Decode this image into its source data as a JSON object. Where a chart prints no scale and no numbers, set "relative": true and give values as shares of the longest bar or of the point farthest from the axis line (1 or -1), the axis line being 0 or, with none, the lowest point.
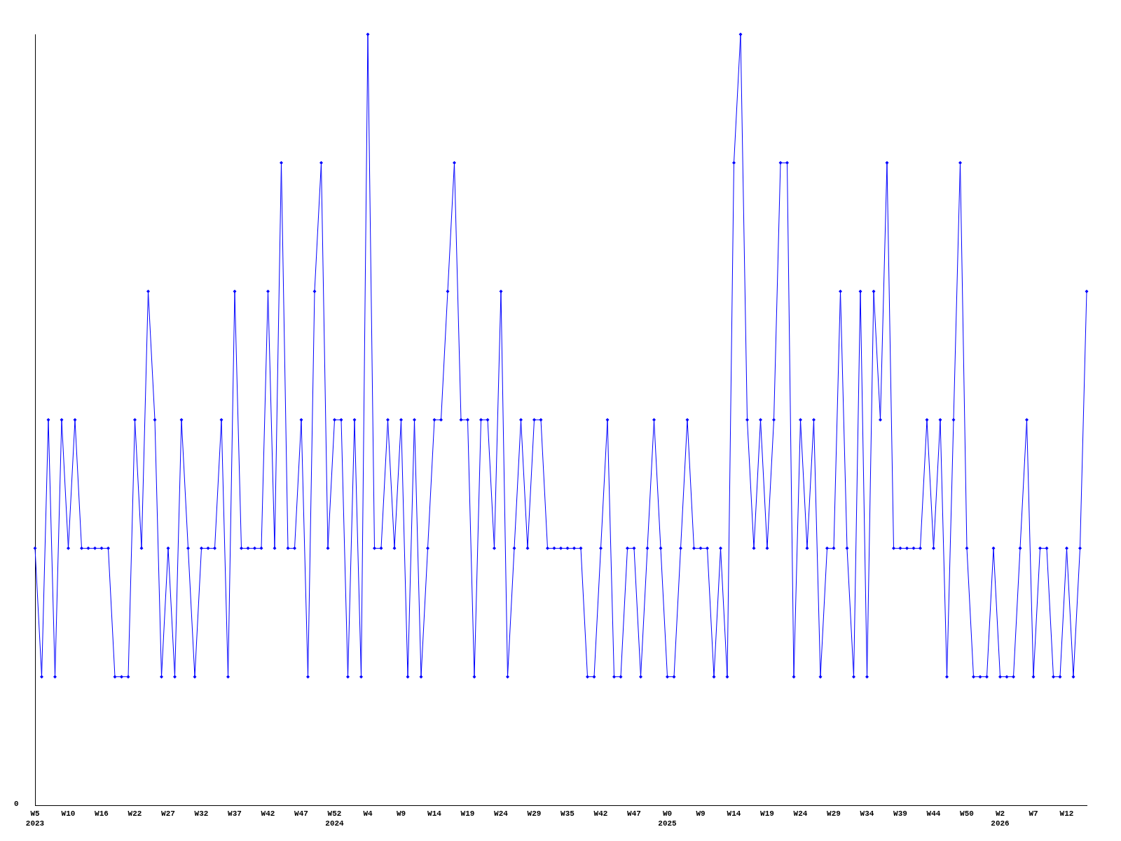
{
  "chart_data": {
    "type": "line",
    "relative": true,
    "marker": "diamond",
    "line_style": "solid",
    "grid": false,
    "legend": false,
    "annotations": [
      "0"
    ],
    "categories": [
      "W5\n2023",
      null,
      null,
      null,
      null,
      "W10",
      null,
      null,
      null,
      null,
      "W16",
      null,
      null,
      null,
      null,
      "W22",
      null,
      null,
      null,
      null,
      "W27",
      null,
      null,
      null,
      null,
      "W32",
      null,
      null,
      null,
      null,
      "W37",
      null,
      null,
      null,
      null,
      "W42",
      null,
      null,
      null,
      null,
      "W47",
      null,
      null,
      null,
      null,
      "W52\n2024",
      null,
      null,
      null,
      null,
      "W4",
      null,
      null,
      null,
      null,
      "W9",
      null,
      null,
      null,
      null,
      "W14",
      null,
      null,
      null,
      null,
      "W19",
      null,
      null,
      null,
      null,
      "W24",
      null,
      null,
      null,
      null,
      "W29",
      null,
      null,
      null,
      null,
      "W35",
      null,
      null,
      null,
      null,
      "W42",
      null,
      null,
      null,
      null,
      "W47",
      null,
      null,
      null,
      null,
      "W0\n2025",
      null,
      null,
      null,
      null,
      "W9",
      null,
      null,
      null,
      null,
      "W14",
      null,
      null,
      null,
      null,
      "W19",
      null,
      null,
      null,
      null,
      "W24",
      null,
      null,
      null,
      null,
      "W29",
      null,
      null,
      null,
      null,
      "W34",
      null,
      null,
      null,
      null,
      "W39",
      null,
      null,
      null,
      null,
      "W44",
      null,
      null,
      null,
      null,
      "W50",
      null,
      null,
      null,
      null,
      "W2\n2026",
      null,
      null,
      null,
      null,
      "W7",
      null,
      null,
      null,
      null,
      "W12",
      null,
      null,
      null
    ],
    "series": [
      {
        "color": "#0000ff",
        "values": [
          0.3333,
          0.1667,
          0.5,
          0.1667,
          0.5,
          0.3333,
          0.5,
          0.3333,
          0.3333,
          0.3333,
          0.3333,
          0.3333,
          0.1667,
          0.1667,
          0.1667,
          0.5,
          0.3333,
          0.6667,
          0.5,
          0.1667,
          0.3333,
          0.1667,
          0.5,
          0.3333,
          0.1667,
          0.3333,
          0.3333,
          0.3333,
          0.5,
          0.1667,
          0.6667,
          0.3333,
          0.3333,
          0.3333,
          0.3333,
          0.6667,
          0.3333,
          0.8333,
          0.3333,
          0.3333,
          0.5,
          0.1667,
          0.6667,
          0.8333,
          0.3333,
          0.5,
          0.5,
          0.1667,
          0.5,
          0.1667,
          1,
          0.3333,
          0.3333,
          0.5,
          0.3333,
          0.5,
          0.1667,
          0.5,
          0.1667,
          0.3333,
          0.5,
          0.5,
          0.6667,
          0.8333,
          0.5,
          0.5,
          0.1667,
          0.5,
          0.5,
          0.3333,
          0.6667,
          0.1667,
          0.3333,
          0.5,
          0.3333,
          0.5,
          0.5,
          0.3333,
          0.3333,
          0.3333,
          0.3333,
          0.3333,
          0.3333,
          0.1667,
          0.1667,
          0.3333,
          0.5,
          0.1667,
          0.1667,
          0.3333,
          0.3333,
          0.1667,
          0.3333,
          0.5,
          0.3333,
          0.1667,
          0.1667,
          0.3333,
          0.5,
          0.3333,
          0.3333,
          0.3333,
          0.1667,
          0.3333,
          0.1667,
          0.8333,
          1,
          0.5,
          0.3333,
          0.5,
          0.3333,
          0.5,
          0.8333,
          0.8333,
          0.1667,
          0.5,
          0.3333,
          0.5,
          0.1667,
          0.3333,
          0.3333,
          0.6667,
          0.3333,
          0.1667,
          0.6667,
          0.1667,
          0.6667,
          0.5,
          0.8333,
          0.3333,
          0.3333,
          0.3333,
          0.3333,
          0.3333,
          0.5,
          0.3333,
          0.5,
          0.1667,
          0.5,
          0.8333,
          0.3333,
          0.1667,
          0.1667,
          0.1667,
          0.3333,
          0.1667,
          0.1667,
          0.1667,
          0.3333,
          0.5,
          0.1667,
          0.3333,
          0.3333,
          0.1667,
          0.1667,
          0.3333,
          0.1667,
          0.3333,
          0.6667
        ]
      }
    ]
  }
}
